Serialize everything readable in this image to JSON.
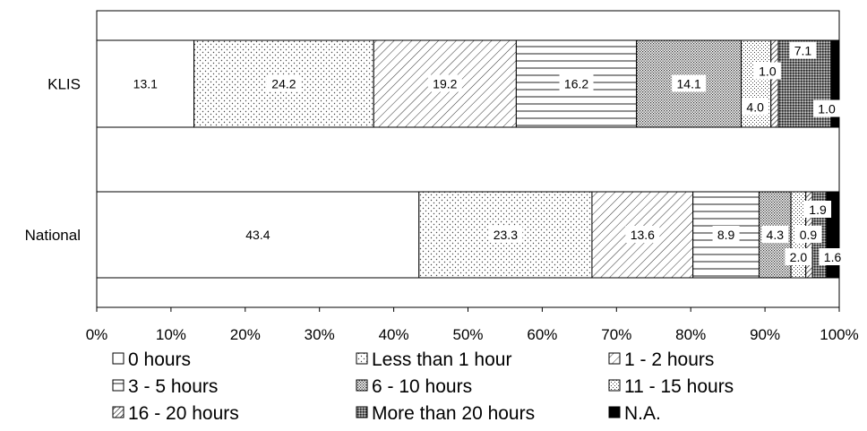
{
  "chart_data": {
    "type": "bar",
    "orientation": "horizontal",
    "stacked": "percent",
    "categories": [
      "KLIS",
      "National"
    ],
    "series": [
      {
        "name": "0 hours",
        "values": [
          13.1,
          43.4
        ],
        "pattern": "none",
        "labels": [
          "13.1",
          "43.4"
        ]
      },
      {
        "name": "Less than 1 hour",
        "values": [
          24.2,
          23.3
        ],
        "pattern": "dots-sparse",
        "labels": [
          "24.2",
          "23.3"
        ]
      },
      {
        "name": "1 - 2 hours",
        "values": [
          19.2,
          13.6
        ],
        "pattern": "diagonal-light",
        "labels": [
          "19.2",
          "13.6"
        ]
      },
      {
        "name": "3 - 5 hours",
        "values": [
          16.2,
          8.9
        ],
        "pattern": "horizontal",
        "labels": [
          "16.2",
          "8.9"
        ]
      },
      {
        "name": "6 - 10 hours",
        "values": [
          14.1,
          4.3
        ],
        "pattern": "dots-dense",
        "labels": [
          "14.1",
          "4.3"
        ]
      },
      {
        "name": "11 - 15 hours",
        "values": [
          4.0,
          2.0
        ],
        "pattern": "dots-medium",
        "labels": [
          "4.0",
          "2.0"
        ]
      },
      {
        "name": "16 - 20 hours",
        "values": [
          1.0,
          0.9
        ],
        "pattern": "diagonal-dense",
        "labels": [
          "1.0",
          "0.9"
        ]
      },
      {
        "name": "More than 20 hours",
        "values": [
          7.1,
          1.9
        ],
        "pattern": "dots-heavy",
        "labels": [
          "7.1",
          "1.9"
        ]
      },
      {
        "name": "N.A.",
        "values": [
          1.0,
          1.6
        ],
        "pattern": "solid",
        "labels": [
          "1.0",
          "1.6"
        ]
      }
    ],
    "xticks": [
      "0%",
      "10%",
      "20%",
      "30%",
      "40%",
      "50%",
      "60%",
      "70%",
      "80%",
      "90%",
      "100%"
    ],
    "xlim": [
      0,
      100
    ],
    "grid": false,
    "legend": "bottom",
    "legend_columns": 3,
    "title": "",
    "xlabel": "",
    "ylabel": ""
  }
}
